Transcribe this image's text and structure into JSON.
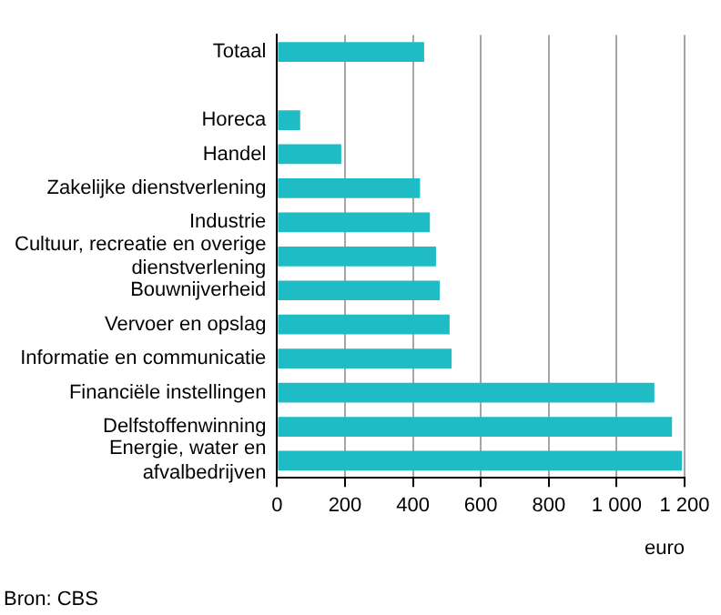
{
  "chart_data": {
    "type": "bar",
    "orientation": "horizontal",
    "categories": [
      "Totaal",
      null,
      "Horeca",
      "Handel",
      "Zakelijke dienstverlening",
      "Industrie",
      "Cultuur, recreatie en overige dienstverlening",
      "Bouwnijverheid",
      "Vervoer en opslag",
      "Informatie en communicatie",
      "Financiële instellingen",
      "Delfstoffenwinning",
      "Energie, water en afvalbedrijven"
    ],
    "values": [
      433,
      null,
      68,
      189,
      421,
      450,
      468,
      479,
      508,
      514,
      1111,
      1163,
      1192
    ],
    "color": "#1fbcc6",
    "xlim": [
      0,
      1200
    ],
    "xticks": [
      0,
      200,
      400,
      600,
      800,
      {
        "value": 1000,
        "label": "1 000"
      },
      {
        "value": 1200,
        "label": "1 200"
      }
    ],
    "xlabel": "euro",
    "grid": "x",
    "annotations": [
      "Bron: CBS"
    ]
  }
}
